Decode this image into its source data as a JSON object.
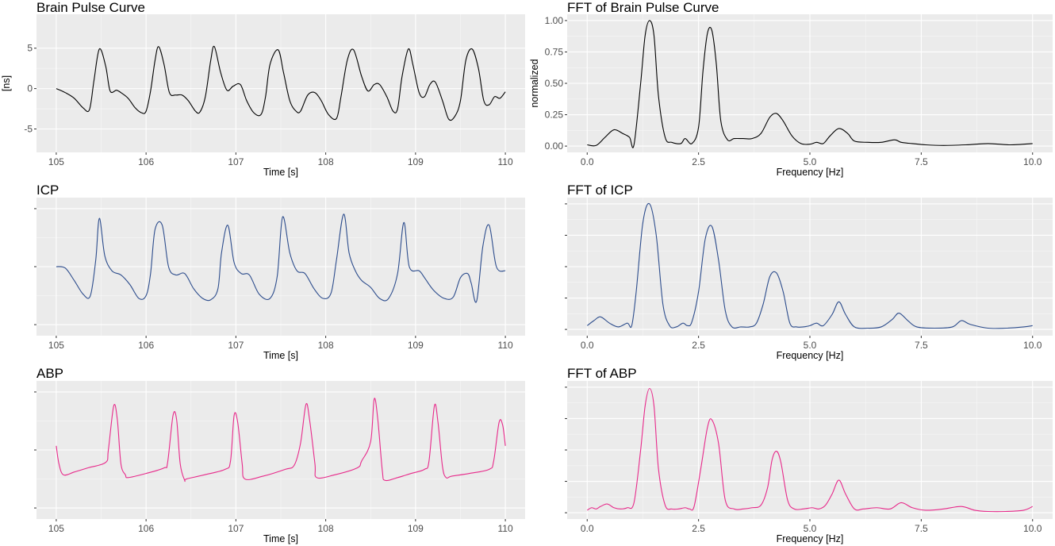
{
  "chart_data": [
    {
      "id": "brain-time",
      "type": "line",
      "title": "Brain Pulse Curve",
      "xlabel": "Time [s]",
      "ylabel": "[ns]",
      "xlim": [
        104.78,
        110.22
      ],
      "ylim": [
        -7.9,
        9.2
      ],
      "xticks": [
        105,
        106,
        107,
        108,
        109,
        110
      ],
      "xtick_labels": [
        "105",
        "106",
        "107",
        "108",
        "109",
        "110"
      ],
      "yticks": [
        -5,
        0,
        5
      ],
      "ytick_labels": [
        "-5",
        "0",
        "5"
      ],
      "grid": true,
      "color": "#000000",
      "series": [
        {
          "x": [
            105.0,
            105.1,
            105.2,
            105.3,
            105.37,
            105.42,
            105.48,
            105.55,
            105.6,
            105.67,
            105.72,
            105.8,
            105.88,
            105.95,
            106.0,
            106.05,
            106.1,
            106.14,
            106.2,
            106.26,
            106.33,
            106.4,
            106.47,
            106.55,
            106.6,
            106.66,
            106.72,
            106.76,
            106.83,
            106.9,
            106.97,
            107.05,
            107.12,
            107.2,
            107.28,
            107.33,
            107.38,
            107.47,
            107.53,
            107.6,
            107.67,
            107.72,
            107.8,
            107.88,
            107.95,
            108.03,
            108.12,
            108.17,
            108.24,
            108.31,
            108.4,
            108.47,
            108.54,
            108.6,
            108.68,
            108.75,
            108.8,
            108.85,
            108.92,
            108.97,
            109.04,
            109.1,
            109.16,
            109.22,
            109.3,
            109.37,
            109.44,
            109.5,
            109.56,
            109.63,
            109.7,
            109.76,
            109.82,
            109.88,
            109.94,
            110.0
          ],
          "y": [
            0.0,
            -0.5,
            -1.2,
            -2.4,
            -2.6,
            1.0,
            4.9,
            2.8,
            -0.3,
            -0.2,
            -0.5,
            -1.2,
            -2.4,
            -3.0,
            -2.8,
            -0.3,
            3.5,
            5.2,
            3.0,
            -0.5,
            -0.8,
            -0.8,
            -1.5,
            -2.8,
            -2.9,
            -1.0,
            3.5,
            5.2,
            2.0,
            -0.2,
            0.3,
            0.5,
            -1.5,
            -3.0,
            -3.2,
            -1.0,
            3.0,
            4.8,
            2.0,
            -1.5,
            -2.8,
            -2.8,
            -0.8,
            -0.5,
            -1.5,
            -3.2,
            -3.7,
            -1.0,
            3.5,
            4.8,
            1.5,
            -0.3,
            0.5,
            0.5,
            -1.0,
            -2.8,
            -2.5,
            1.5,
            4.9,
            3.0,
            -0.5,
            -1.0,
            0.5,
            0.8,
            -1.5,
            -3.8,
            -3.4,
            -1.5,
            3.5,
            4.9,
            2.5,
            -1.5,
            -2.0,
            -1.0,
            -1.2,
            -0.4
          ]
        }
      ]
    },
    {
      "id": "brain-fft",
      "type": "line",
      "title": "FFT of Brain Pulse Curve",
      "xlabel": "Frequency [Hz]",
      "ylabel": "normalized",
      "xlim": [
        -0.45,
        10.45
      ],
      "ylim": [
        -0.05,
        1.05
      ],
      "xticks": [
        0,
        2.5,
        5,
        7.5,
        10
      ],
      "xtick_labels": [
        "0.0",
        "2.5",
        "5.0",
        "7.5",
        "10.0"
      ],
      "yticks": [
        0,
        0.25,
        0.5,
        0.75,
        1
      ],
      "ytick_labels": [
        "0.00",
        "0.25",
        "0.50",
        "0.75",
        "1.00"
      ],
      "grid": true,
      "color": "#000000",
      "series": [
        {
          "x": [
            0.0,
            0.2,
            0.4,
            0.6,
            0.8,
            0.95,
            1.05,
            1.2,
            1.3,
            1.4,
            1.5,
            1.6,
            1.75,
            1.9,
            2.1,
            2.2,
            2.35,
            2.5,
            2.6,
            2.7,
            2.8,
            2.9,
            3.0,
            3.15,
            3.3,
            3.5,
            3.7,
            3.9,
            4.1,
            4.25,
            4.4,
            4.6,
            4.8,
            5.0,
            5.15,
            5.3,
            5.45,
            5.65,
            5.85,
            6.0,
            6.3,
            6.6,
            6.9,
            7.05,
            7.3,
            7.6,
            8.0,
            8.5,
            9.0,
            9.5,
            10.0
          ],
          "y": [
            0.01,
            0.005,
            0.07,
            0.13,
            0.1,
            0.07,
            0.01,
            0.5,
            0.88,
            1.0,
            0.88,
            0.4,
            0.07,
            0.03,
            0.02,
            0.06,
            0.02,
            0.15,
            0.6,
            0.9,
            0.92,
            0.65,
            0.2,
            0.05,
            0.06,
            0.06,
            0.06,
            0.1,
            0.23,
            0.26,
            0.2,
            0.08,
            0.02,
            0.015,
            0.03,
            0.02,
            0.08,
            0.14,
            0.1,
            0.04,
            0.03,
            0.03,
            0.05,
            0.03,
            0.02,
            0.01,
            0.005,
            0.01,
            0.02,
            0.01,
            0.02
          ]
        }
      ]
    },
    {
      "id": "icp-time",
      "type": "line",
      "title": "ICP",
      "xlabel": "Time [s]",
      "ylabel": "",
      "xlim": [
        104.78,
        110.22
      ],
      "ylim": [
        0,
        1
      ],
      "xticks": [
        105,
        106,
        107,
        108,
        109,
        110
      ],
      "xtick_labels": [
        "105",
        "106",
        "107",
        "108",
        "109",
        "110"
      ],
      "yticks": [
        0.08,
        0.5,
        0.92
      ],
      "ytick_labels": [
        "",
        "",
        ""
      ],
      "grid": true,
      "color": "#2c4c8c",
      "series": [
        {
          "x": [
            105.0,
            105.1,
            105.2,
            105.3,
            105.38,
            105.44,
            105.48,
            105.54,
            105.62,
            105.72,
            105.82,
            105.92,
            106.0,
            106.05,
            106.1,
            106.18,
            106.25,
            106.33,
            106.43,
            106.53,
            106.63,
            106.72,
            106.8,
            106.84,
            106.91,
            106.98,
            107.06,
            107.15,
            107.26,
            107.38,
            107.46,
            107.52,
            107.6,
            107.68,
            107.77,
            107.87,
            107.97,
            108.06,
            108.12,
            108.2,
            108.26,
            108.33,
            108.4,
            108.5,
            108.6,
            108.7,
            108.8,
            108.87,
            108.93,
            109.04,
            109.1,
            109.2,
            109.32,
            109.42,
            109.5,
            109.58,
            109.62,
            109.68,
            109.75,
            109.82,
            109.9,
            110.0
          ],
          "y": [
            0.5,
            0.49,
            0.4,
            0.3,
            0.29,
            0.55,
            0.85,
            0.58,
            0.47,
            0.44,
            0.37,
            0.27,
            0.29,
            0.45,
            0.77,
            0.8,
            0.5,
            0.44,
            0.45,
            0.34,
            0.27,
            0.26,
            0.34,
            0.6,
            0.8,
            0.53,
            0.45,
            0.44,
            0.3,
            0.27,
            0.43,
            0.86,
            0.6,
            0.47,
            0.45,
            0.34,
            0.27,
            0.31,
            0.55,
            0.88,
            0.6,
            0.47,
            0.4,
            0.35,
            0.27,
            0.27,
            0.45,
            0.82,
            0.5,
            0.47,
            0.42,
            0.33,
            0.27,
            0.28,
            0.42,
            0.45,
            0.38,
            0.25,
            0.65,
            0.8,
            0.5,
            0.47
          ]
        }
      ]
    },
    {
      "id": "icp-fft",
      "type": "line",
      "title": "FFT of ICP",
      "xlabel": "Frequency [Hz]",
      "ylabel": "",
      "xlim": [
        -0.45,
        10.45
      ],
      "ylim": [
        -0.05,
        1.05
      ],
      "xticks": [
        0,
        2.5,
        5,
        7.5,
        10
      ],
      "xtick_labels": [
        "0.0",
        "2.5",
        "5.0",
        "7.5",
        "10.0"
      ],
      "yticks": [
        0,
        0.25,
        0.5,
        0.75,
        1
      ],
      "ytick_labels": [
        "",
        "",
        "",
        "",
        ""
      ],
      "grid": true,
      "color": "#2c4c8c",
      "series": [
        {
          "x": [
            0.0,
            0.15,
            0.3,
            0.5,
            0.7,
            0.9,
            1.0,
            1.1,
            1.25,
            1.4,
            1.55,
            1.7,
            1.85,
            2.0,
            2.15,
            2.25,
            2.35,
            2.5,
            2.65,
            2.8,
            2.95,
            3.1,
            3.25,
            3.45,
            3.65,
            3.8,
            3.95,
            4.1,
            4.25,
            4.4,
            4.55,
            4.7,
            4.85,
            5.0,
            5.15,
            5.3,
            5.5,
            5.65,
            5.8,
            6.0,
            6.3,
            6.6,
            6.85,
            7.0,
            7.2,
            7.4,
            7.8,
            8.2,
            8.4,
            8.6,
            9.0,
            9.4,
            9.8,
            10.0
          ],
          "y": [
            0.03,
            0.07,
            0.1,
            0.05,
            0.02,
            0.05,
            0.03,
            0.3,
            0.85,
            1.0,
            0.75,
            0.2,
            0.03,
            0.02,
            0.05,
            0.03,
            0.06,
            0.3,
            0.72,
            0.82,
            0.55,
            0.15,
            0.02,
            0.02,
            0.02,
            0.05,
            0.2,
            0.42,
            0.45,
            0.3,
            0.05,
            0.02,
            0.02,
            0.03,
            0.05,
            0.03,
            0.12,
            0.22,
            0.12,
            0.02,
            0.01,
            0.02,
            0.08,
            0.13,
            0.07,
            0.02,
            0.01,
            0.02,
            0.07,
            0.04,
            0.01,
            0.01,
            0.02,
            0.03
          ]
        }
      ]
    },
    {
      "id": "abp-time",
      "type": "line",
      "title": "ABP",
      "xlabel": "Time [s]",
      "ylabel": "",
      "xlim": [
        104.78,
        110.22
      ],
      "ylim": [
        0,
        1
      ],
      "xticks": [
        105,
        106,
        107,
        108,
        109,
        110
      ],
      "xtick_labels": [
        "105",
        "106",
        "107",
        "108",
        "109",
        "110"
      ],
      "yticks": [
        0.08,
        0.5,
        0.92
      ],
      "ytick_labels": [
        "",
        "",
        ""
      ],
      "grid": true,
      "color": "#e7298a",
      "series": [
        {
          "x": [
            105.0,
            105.03,
            105.08,
            105.2,
            105.35,
            105.55,
            105.58,
            105.64,
            105.68,
            105.72,
            105.77,
            105.8,
            106.0,
            106.2,
            106.24,
            106.3,
            106.34,
            106.38,
            106.43,
            106.45,
            106.65,
            106.88,
            106.94,
            106.98,
            107.02,
            107.07,
            107.1,
            107.3,
            107.55,
            107.65,
            107.72,
            107.78,
            107.82,
            107.88,
            107.9,
            108.1,
            108.35,
            108.4,
            108.5,
            108.54,
            108.58,
            108.63,
            108.66,
            108.8,
            108.95,
            109.1,
            109.15,
            109.21,
            109.25,
            109.3,
            109.34,
            109.4,
            109.6,
            109.82,
            109.87,
            109.93,
            109.97,
            110.0
          ],
          "y": [
            0.53,
            0.4,
            0.32,
            0.34,
            0.37,
            0.41,
            0.5,
            0.82,
            0.72,
            0.4,
            0.32,
            0.3,
            0.33,
            0.37,
            0.41,
            0.75,
            0.72,
            0.4,
            0.28,
            0.29,
            0.32,
            0.36,
            0.42,
            0.75,
            0.7,
            0.4,
            0.29,
            0.31,
            0.36,
            0.39,
            0.55,
            0.83,
            0.72,
            0.4,
            0.3,
            0.32,
            0.37,
            0.42,
            0.56,
            0.87,
            0.72,
            0.35,
            0.28,
            0.3,
            0.33,
            0.36,
            0.42,
            0.82,
            0.7,
            0.38,
            0.3,
            0.31,
            0.33,
            0.36,
            0.42,
            0.7,
            0.68,
            0.53
          ]
        }
      ]
    },
    {
      "id": "abp-fft",
      "type": "line",
      "title": "FFT of ABP",
      "xlabel": "Frequency [Hz]",
      "ylabel": "",
      "xlim": [
        -0.45,
        10.45
      ],
      "ylim": [
        -0.05,
        1.05
      ],
      "xticks": [
        0,
        2.5,
        5,
        7.5,
        10
      ],
      "xtick_labels": [
        "0.0",
        "2.5",
        "5.0",
        "7.5",
        "10.0"
      ],
      "yticks": [
        0,
        0.25,
        0.5,
        0.75,
        1
      ],
      "ytick_labels": [
        "",
        "",
        "",
        "",
        ""
      ],
      "grid": true,
      "color": "#e7298a",
      "series": [
        {
          "x": [
            0.0,
            0.1,
            0.2,
            0.3,
            0.45,
            0.6,
            0.75,
            0.9,
            1.05,
            1.2,
            1.3,
            1.4,
            1.5,
            1.6,
            1.75,
            1.9,
            2.05,
            2.2,
            2.3,
            2.4,
            2.55,
            2.7,
            2.8,
            2.95,
            3.1,
            3.3,
            3.5,
            3.7,
            3.9,
            4.05,
            4.15,
            4.25,
            4.35,
            4.5,
            4.65,
            4.85,
            5.05,
            5.2,
            5.35,
            5.5,
            5.65,
            5.8,
            6.0,
            6.2,
            6.5,
            6.8,
            7.05,
            7.3,
            7.6,
            8.0,
            8.4,
            8.7,
            9.0,
            9.4,
            9.8,
            10.0
          ],
          "y": [
            0.02,
            0.04,
            0.03,
            0.05,
            0.07,
            0.04,
            0.03,
            0.04,
            0.08,
            0.5,
            0.85,
            0.99,
            0.85,
            0.35,
            0.06,
            0.03,
            0.03,
            0.04,
            0.03,
            0.05,
            0.35,
            0.68,
            0.74,
            0.55,
            0.1,
            0.03,
            0.03,
            0.04,
            0.06,
            0.2,
            0.42,
            0.49,
            0.4,
            0.1,
            0.03,
            0.03,
            0.04,
            0.03,
            0.06,
            0.15,
            0.26,
            0.15,
            0.03,
            0.03,
            0.04,
            0.03,
            0.08,
            0.04,
            0.02,
            0.03,
            0.05,
            0.02,
            0.01,
            0.01,
            0.02,
            0.05
          ]
        }
      ]
    }
  ]
}
